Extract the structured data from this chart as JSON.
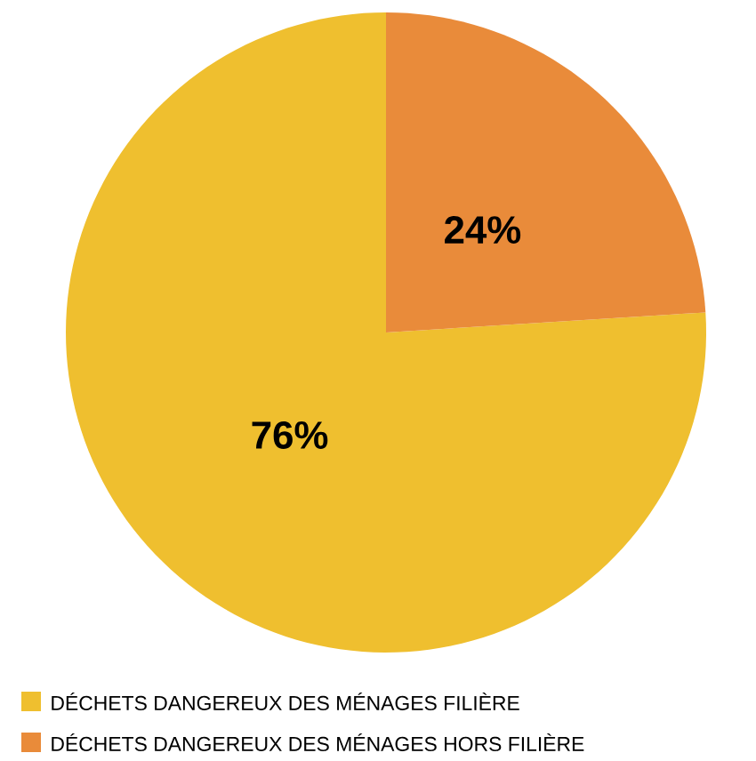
{
  "chart_data": {
    "type": "pie",
    "categories": [
      "DÉCHETS DANGEREUX DES MÉNAGES FILIÈRE",
      "DÉCHETS DANGEREUX DES MÉNAGES HORS FILIÈRE"
    ],
    "values": [
      76,
      24
    ],
    "value_labels": [
      "76%",
      "24%"
    ],
    "colors": [
      "#efbf2f",
      "#e98b3a"
    ],
    "legend": "bottom"
  }
}
